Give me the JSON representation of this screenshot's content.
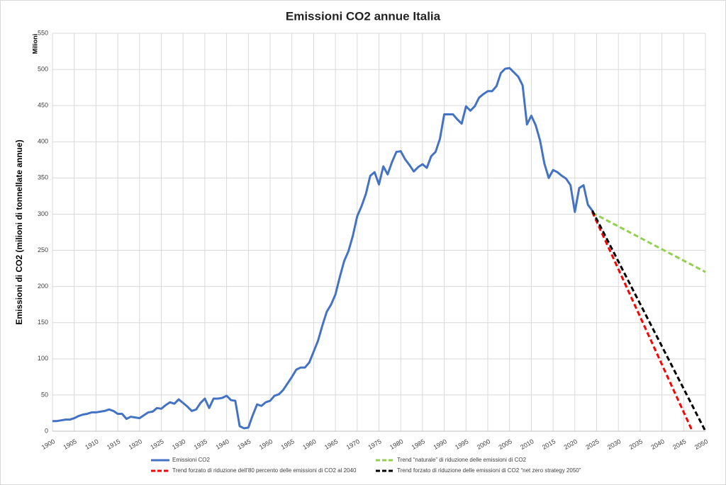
{
  "chart_data": {
    "type": "line",
    "title": "Emissioni CO2 annue Italia",
    "y_label": "Emissioni di CO2 (milioni di tonnellate annue)",
    "y_unit_label": "Milioni",
    "xlim": [
      1900,
      2050
    ],
    "xticks": [
      1900,
      1905,
      1910,
      1915,
      1920,
      1925,
      1930,
      1935,
      1940,
      1945,
      1950,
      1955,
      1960,
      1965,
      1970,
      1975,
      1980,
      1985,
      1990,
      1995,
      2000,
      2005,
      2010,
      2015,
      2020,
      2025,
      2030,
      2035,
      2040,
      2045,
      2050
    ],
    "ylim": [
      0,
      550
    ],
    "yticks": [
      0,
      50,
      100,
      150,
      200,
      250,
      300,
      350,
      400,
      450,
      500,
      550
    ],
    "grid": true,
    "legend": "bottom",
    "series": [
      {
        "name": "Emissioni CO2",
        "color": "#4472c4",
        "dashed": false,
        "x": [
          1900,
          1901,
          1902,
          1903,
          1904,
          1905,
          1906,
          1907,
          1908,
          1909,
          1910,
          1911,
          1912,
          1913,
          1914,
          1915,
          1916,
          1917,
          1918,
          1919,
          1920,
          1921,
          1922,
          1923,
          1924,
          1925,
          1926,
          1927,
          1928,
          1929,
          1930,
          1931,
          1932,
          1933,
          1934,
          1935,
          1936,
          1937,
          1938,
          1939,
          1940,
          1941,
          1942,
          1943,
          1944,
          1945,
          1946,
          1947,
          1948,
          1949,
          1950,
          1951,
          1952,
          1953,
          1954,
          1955,
          1956,
          1957,
          1958,
          1959,
          1960,
          1961,
          1962,
          1963,
          1964,
          1965,
          1966,
          1967,
          1968,
          1969,
          1970,
          1971,
          1972,
          1973,
          1974,
          1975,
          1976,
          1977,
          1978,
          1979,
          1980,
          1981,
          1982,
          1983,
          1984,
          1985,
          1986,
          1987,
          1988,
          1989,
          1990,
          1991,
          1992,
          1993,
          1994,
          1995,
          1996,
          1997,
          1998,
          1999,
          2000,
          2001,
          2002,
          2003,
          2004,
          2005,
          2006,
          2007,
          2008,
          2009,
          2010,
          2011,
          2012,
          2013,
          2014,
          2015,
          2016,
          2017,
          2018,
          2019,
          2020,
          2021,
          2022,
          2023,
          2024
        ],
        "values": [
          14,
          14,
          15,
          16,
          16,
          18,
          21,
          23,
          24,
          26,
          26,
          27,
          28,
          30,
          28,
          24,
          24,
          17,
          20,
          19,
          18,
          22,
          26,
          27,
          32,
          31,
          36,
          40,
          38,
          44,
          39,
          34,
          28,
          30,
          39,
          45,
          32,
          45,
          45,
          46,
          49,
          43,
          42,
          7,
          4,
          5,
          22,
          37,
          35,
          40,
          42,
          49,
          51,
          57,
          66,
          75,
          85,
          88,
          88,
          95,
          110,
          125,
          146,
          165,
          175,
          189,
          213,
          235,
          249,
          270,
          297,
          311,
          328,
          353,
          358,
          341,
          366,
          355,
          372,
          386,
          387,
          376,
          368,
          359,
          365,
          369,
          364,
          380,
          386,
          404,
          438,
          438,
          438,
          431,
          425,
          449,
          443,
          449,
          461,
          466,
          470,
          470,
          477,
          495,
          501,
          502,
          496,
          490,
          478,
          424,
          436,
          423,
          402,
          370,
          350,
          361,
          358,
          353,
          349,
          340,
          303,
          336,
          340,
          313,
          305
        ]
      },
      {
        "name": "Trend “naturale” di riduzione delle emissioni di CO2",
        "color": "#92d050",
        "dashed": true,
        "x": [
          2024,
          2050
        ],
        "values": [
          302,
          220
        ]
      },
      {
        "name": "Trend forzato di riduzione dell’80 percento delle emissioni di CO2 al 2040",
        "color": "#ff0000",
        "dashed": true,
        "x": [
          2024,
          2047
        ],
        "values": [
          303,
          0
        ]
      },
      {
        "name": "Trend forzato di riduzione delle emissioni di CO2 “net zero strategy 2050”",
        "color": "#000000",
        "dashed": true,
        "x": [
          2024,
          2050
        ],
        "values": [
          305,
          0
        ]
      }
    ]
  }
}
